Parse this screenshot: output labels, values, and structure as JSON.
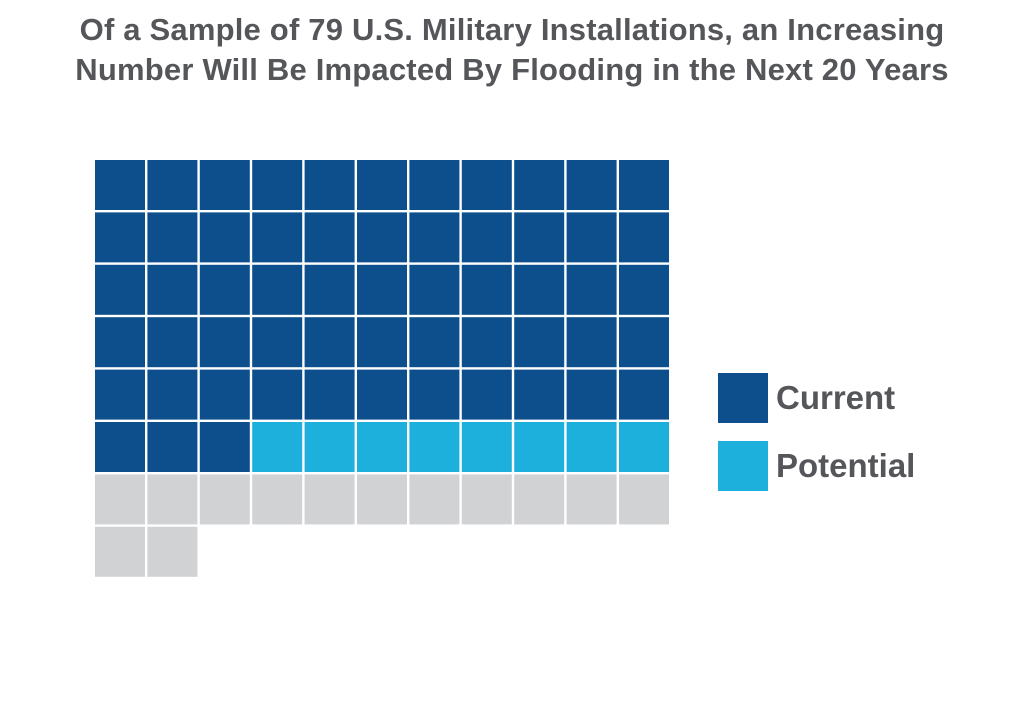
{
  "title": {
    "line1": "Of a Sample of 79 U.S. Military Installations, an Increasing",
    "line2": "Number Will Be Impacted By Flooding in the Next 20 Years"
  },
  "chart_data": {
    "type": "waffle",
    "total_units": 79,
    "grid": {
      "columns": 11,
      "rows_max": 10
    },
    "series": [
      {
        "name": "Current",
        "count": 58,
        "color": "#0d4e8c"
      },
      {
        "name": "Potential",
        "count": 8,
        "color": "#1eb0dc"
      }
    ],
    "remaining": {
      "count": 13,
      "color": "#d1d2d4"
    },
    "legend": {
      "placement": "right"
    }
  }
}
